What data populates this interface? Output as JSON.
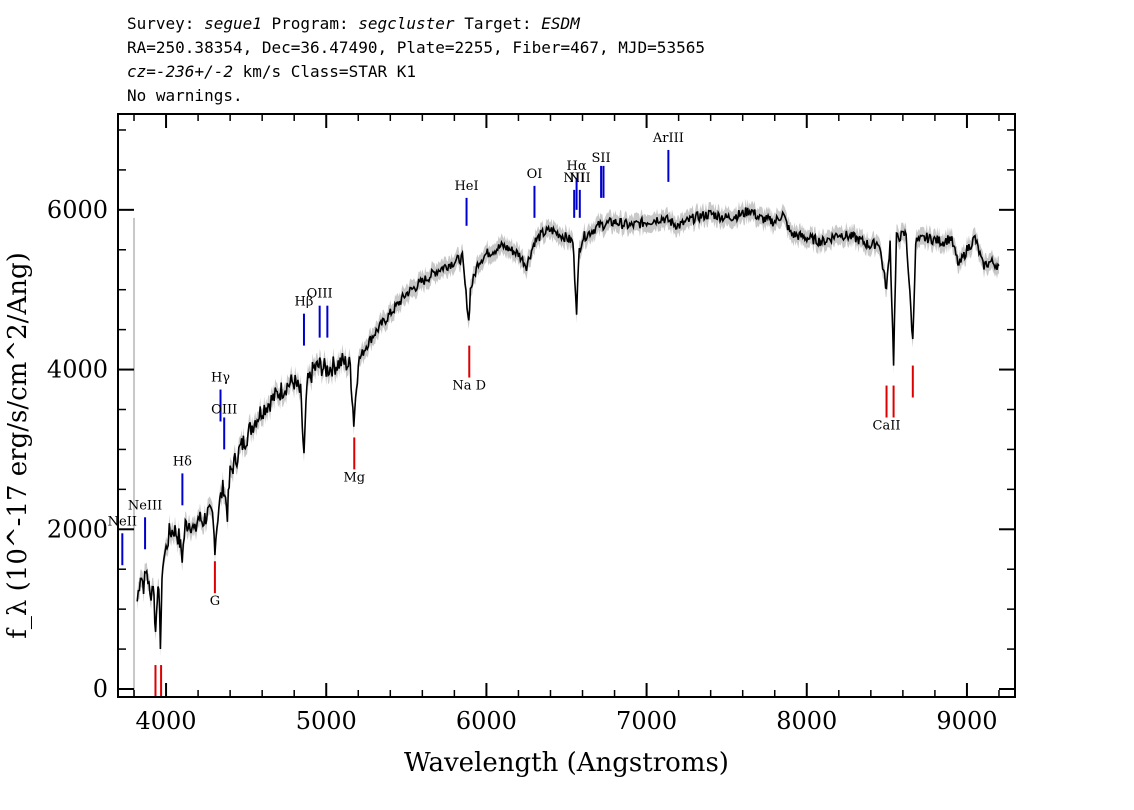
{
  "header": {
    "line1": {
      "survey_label": "Survey:",
      "survey_value": "segue1",
      "program_label": "Program:",
      "program_value": "segcluster",
      "target_label": "Target:",
      "target_value": "ESDM"
    },
    "line2": "RA=250.38354, Dec=36.47490, Plate=2255, Fiber=467, MJD=53565",
    "line3": {
      "cz_label": "cz=",
      "cz_value": "-236+/-2",
      "cz_suffix": " km/s Class=STAR K1"
    },
    "line4": "No warnings."
  },
  "chart_data": {
    "type": "line",
    "title": "",
    "xlabel": "Wavelength (Angstroms)",
    "ylabel": "f_λ (10^-17 erg/s/cm^2/Ang)",
    "xlim": [
      3700,
      9300
    ],
    "ylim": [
      -100,
      7200
    ],
    "x_ticks": [
      4000,
      5000,
      6000,
      7000,
      8000,
      9000
    ],
    "y_ticks": [
      0,
      2000,
      4000,
      6000
    ],
    "colors": {
      "spectrum": "#000000",
      "error_band": "#c8c8c8",
      "emission_lines": "#0000cc",
      "absorption_lines": "#dd0000"
    },
    "series": [
      {
        "values": [
          [
            3820,
            1100
          ],
          [
            3840,
            1450
          ],
          [
            3860,
            1300
          ],
          [
            3880,
            1500
          ],
          [
            3900,
            1150
          ],
          [
            3920,
            1350
          ],
          [
            3935,
            700
          ],
          [
            3950,
            1400
          ],
          [
            3965,
            600
          ],
          [
            3980,
            1600
          ],
          [
            4000,
            1750
          ],
          [
            4020,
            1950
          ],
          [
            4050,
            2000
          ],
          [
            4080,
            1900
          ],
          [
            4101,
            1650
          ],
          [
            4120,
            2050
          ],
          [
            4150,
            2100
          ],
          [
            4180,
            1950
          ],
          [
            4200,
            2150
          ],
          [
            4230,
            2100
          ],
          [
            4260,
            2200
          ],
          [
            4290,
            2150
          ],
          [
            4305,
            1800
          ],
          [
            4330,
            2300
          ],
          [
            4360,
            2550
          ],
          [
            4383,
            2200
          ],
          [
            4400,
            2700
          ],
          [
            4430,
            2850
          ],
          [
            4460,
            3000
          ],
          [
            4500,
            3150
          ],
          [
            4550,
            3350
          ],
          [
            4600,
            3500
          ],
          [
            4650,
            3600
          ],
          [
            4700,
            3700
          ],
          [
            4750,
            3800
          ],
          [
            4800,
            3850
          ],
          [
            4840,
            3700
          ],
          [
            4861,
            2900
          ],
          [
            4880,
            3800
          ],
          [
            4920,
            4000
          ],
          [
            4960,
            4050
          ],
          [
            5000,
            4000
          ],
          [
            5050,
            4050
          ],
          [
            5100,
            4100
          ],
          [
            5150,
            4050
          ],
          [
            5172,
            3350
          ],
          [
            5200,
            4100
          ],
          [
            5250,
            4300
          ],
          [
            5300,
            4450
          ],
          [
            5400,
            4700
          ],
          [
            5500,
            4950
          ],
          [
            5600,
            5100
          ],
          [
            5700,
            5250
          ],
          [
            5800,
            5350
          ],
          [
            5850,
            5400
          ],
          [
            5890,
            4600
          ],
          [
            5900,
            5000
          ],
          [
            5950,
            5350
          ],
          [
            6000,
            5450
          ],
          [
            6100,
            5550
          ],
          [
            6200,
            5450
          ],
          [
            6250,
            5300
          ],
          [
            6300,
            5600
          ],
          [
            6350,
            5700
          ],
          [
            6400,
            5750
          ],
          [
            6450,
            5700
          ],
          [
            6500,
            5650
          ],
          [
            6540,
            5600
          ],
          [
            6563,
            4750
          ],
          [
            6580,
            5500
          ],
          [
            6600,
            5650
          ],
          [
            6700,
            5800
          ],
          [
            6800,
            5850
          ],
          [
            6900,
            5800
          ],
          [
            7000,
            5850
          ],
          [
            7100,
            5900
          ],
          [
            7200,
            5800
          ],
          [
            7300,
            5900
          ],
          [
            7400,
            5950
          ],
          [
            7500,
            5900
          ],
          [
            7600,
            5950
          ],
          [
            7650,
            6000
          ],
          [
            7700,
            5900
          ],
          [
            7800,
            5850
          ],
          [
            7850,
            5950
          ],
          [
            7900,
            5700
          ],
          [
            8000,
            5650
          ],
          [
            8100,
            5600
          ],
          [
            8200,
            5700
          ],
          [
            8300,
            5650
          ],
          [
            8400,
            5550
          ],
          [
            8450,
            5600
          ],
          [
            8498,
            5000
          ],
          [
            8520,
            5600
          ],
          [
            8542,
            4100
          ],
          [
            8560,
            5650
          ],
          [
            8620,
            5700
          ],
          [
            8662,
            4350
          ],
          [
            8680,
            5600
          ],
          [
            8750,
            5650
          ],
          [
            8850,
            5600
          ],
          [
            8900,
            5650
          ],
          [
            8950,
            5300
          ],
          [
            9000,
            5500
          ],
          [
            9050,
            5650
          ],
          [
            9100,
            5300
          ],
          [
            9150,
            5350
          ],
          [
            9200,
            5300
          ]
        ]
      }
    ],
    "error_band_halfwidth": 110,
    "emission_lines": [
      {
        "label": "NeII",
        "x": 3727,
        "y_bottom": 1550,
        "y_top": 1950,
        "label_y": 2050
      },
      {
        "label": "NeIII",
        "x": 3869,
        "y_bottom": 1750,
        "y_top": 2150,
        "label_y": 2250
      },
      {
        "label": "Hδ",
        "x": 4102,
        "y_bottom": 2300,
        "y_top": 2700,
        "label_y": 2800
      },
      {
        "label": "Hγ",
        "x": 4340,
        "y_bottom": 3350,
        "y_top": 3750,
        "label_y": 3850
      },
      {
        "label": "OIII",
        "x": 4363,
        "y_bottom": 3000,
        "y_top": 3400,
        "label_y": 3450
      },
      {
        "label": "Hβ",
        "x": 4861,
        "y_bottom": 4300,
        "y_top": 4700,
        "label_y": 4800
      },
      {
        "label": "OIII",
        "x": 4959,
        "y_bottom": 4400,
        "y_top": 4800,
        "label_y": 4900
      },
      {
        "label": "",
        "x": 5007,
        "y_bottom": 4400,
        "y_top": 4800,
        "label_y": 0
      },
      {
        "label": "HeI",
        "x": 5876,
        "y_bottom": 5800,
        "y_top": 6150,
        "label_y": 6250
      },
      {
        "label": "OI",
        "x": 6300,
        "y_bottom": 5900,
        "y_top": 6300,
        "label_y": 6400
      },
      {
        "label": "NII",
        "x": 6548,
        "y_bottom": 5900,
        "y_top": 6250,
        "label_y": 6350
      },
      {
        "label": "Hα",
        "x": 6563,
        "y_bottom": 6000,
        "y_top": 6400,
        "label_y": 6500
      },
      {
        "label": "NII",
        "x": 6583,
        "y_bottom": 5900,
        "y_top": 6250,
        "label_y": 6350
      },
      {
        "label": "SII",
        "x": 6716,
        "y_bottom": 6150,
        "y_top": 6550,
        "label_y": 6600
      },
      {
        "label": "",
        "x": 6731,
        "y_bottom": 6150,
        "y_top": 6550,
        "label_y": 0
      },
      {
        "label": "ArIII",
        "x": 7136,
        "y_bottom": 6350,
        "y_top": 6750,
        "label_y": 6850
      }
    ],
    "absorption_lines": [
      {
        "label": "",
        "x": 3934,
        "y_bottom": -100,
        "y_top": 300,
        "label_y": 0
      },
      {
        "label": "",
        "x": 3969,
        "y_bottom": -100,
        "y_top": 300,
        "label_y": 0
      },
      {
        "label": "G",
        "x": 4305,
        "y_bottom": 1200,
        "y_top": 1600,
        "label_y": 1050
      },
      {
        "label": "Mg",
        "x": 5175,
        "y_bottom": 2750,
        "y_top": 3150,
        "label_y": 2600
      },
      {
        "label": "Na D",
        "x": 5893,
        "y_bottom": 3900,
        "y_top": 4300,
        "label_y": 3750
      },
      {
        "label": "CaII",
        "x": 8498,
        "y_bottom": 3400,
        "y_top": 3800,
        "label_y": 3250
      },
      {
        "label": "",
        "x": 8542,
        "y_bottom": 3400,
        "y_top": 3800,
        "label_y": 0
      },
      {
        "label": "",
        "x": 8662,
        "y_bottom": 3650,
        "y_top": 4050,
        "label_y": 0
      }
    ]
  }
}
